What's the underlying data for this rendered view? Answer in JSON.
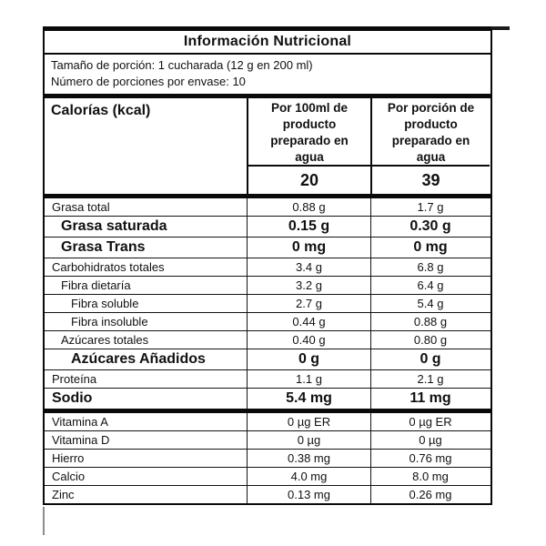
{
  "colors": {
    "background": "#ffffff",
    "text": "#111111",
    "border": "#0a0a0a"
  },
  "title": "Información Nutricional",
  "serving": {
    "line1": "Tamaño de porción: 1 cucharada (12 g en 200 ml)",
    "line2": "Número de porciones por envase: 10"
  },
  "calories": {
    "label": "Calorías (kcal)",
    "col1_header": "Por 100ml de producto preparado en agua",
    "col2_header": "Por porción de producto preparado en agua",
    "col1_value": "20",
    "col2_value": "39"
  },
  "main_rows": [
    {
      "label": "Grasa total",
      "col1": "0.88 g",
      "col2": "1.7 g",
      "bold": false,
      "indent": 0
    },
    {
      "label": "Grasa saturada",
      "col1": "0.15 g",
      "col2": "0.30 g",
      "bold": true,
      "indent": 1
    },
    {
      "label": "Grasa Trans",
      "col1": "0 mg",
      "col2": "0 mg",
      "bold": true,
      "indent": 1
    },
    {
      "label": "Carbohidratos totales",
      "col1": "3.4 g",
      "col2": "6.8 g",
      "bold": false,
      "indent": 0
    },
    {
      "label": "Fibra dietaría",
      "col1": "3.2 g",
      "col2": "6.4 g",
      "bold": false,
      "indent": 1
    },
    {
      "label": "Fibra soluble",
      "col1": "2.7 g",
      "col2": "5.4 g",
      "bold": false,
      "indent": 2
    },
    {
      "label": "Fibra insoluble",
      "col1": "0.44 g",
      "col2": "0.88 g",
      "bold": false,
      "indent": 2
    },
    {
      "label": "Azúcares totales",
      "col1": "0.40 g",
      "col2": "0.80 g",
      "bold": false,
      "indent": 1
    },
    {
      "label": "Azúcares Añadidos",
      "col1": "0 g",
      "col2": "0 g",
      "bold": true,
      "indent": 2
    },
    {
      "label": "Proteína",
      "col1": "1.1 g",
      "col2": "2.1 g",
      "bold": false,
      "indent": 0
    },
    {
      "label": "Sodio",
      "col1": "5.4 mg",
      "col2": "11 mg",
      "bold": true,
      "indent": 0
    }
  ],
  "micro_rows": [
    {
      "label": "Vitamina A",
      "col1": "0 µg ER",
      "col2": "0 µg ER",
      "bold": false,
      "indent": 0
    },
    {
      "label": "Vitamina D",
      "col1": "0 µg",
      "col2": "0 µg",
      "bold": false,
      "indent": 0
    },
    {
      "label": "Hierro",
      "col1": "0.38 mg",
      "col2": "0.76 mg",
      "bold": false,
      "indent": 0
    },
    {
      "label": "Calcio",
      "col1": "4.0 mg",
      "col2": "8.0 mg",
      "bold": false,
      "indent": 0
    },
    {
      "label": "Zinc",
      "col1": "0.13 mg",
      "col2": "0.26 mg",
      "bold": false,
      "indent": 0
    }
  ]
}
